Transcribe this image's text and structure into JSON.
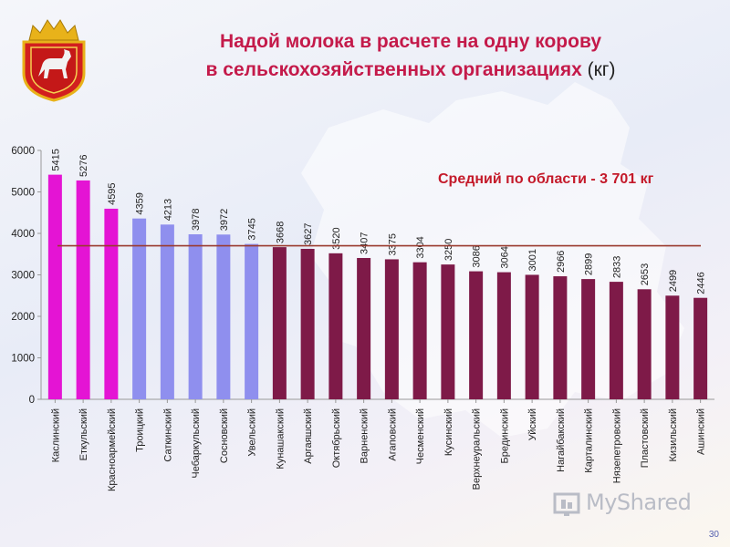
{
  "title": {
    "line1": "Надой молока в расчете на одну корову",
    "line2": "в сельскохозяйственных организациях",
    "unit": "(кг)"
  },
  "average_label": "Средний по области - 3 701 кг",
  "page_number": "30",
  "watermark": "MyShared",
  "emblem": {
    "icon": "chelyabinsk-coat-of-arms-icon"
  },
  "colors": {
    "magenta": "#e414d4",
    "lavender": "#8f8fee",
    "maroon": "#7e1a48",
    "average_line": "#9a3a2e",
    "title": "#c41a4a"
  },
  "chart_data": {
    "type": "bar",
    "categories": [
      "Каслинский",
      "Еткульский",
      "Красноармейский",
      "Троицкий",
      "Саткинский",
      "Чебаркульский",
      "Сосновский",
      "Увельский",
      "Кунашакский",
      "Аргаяшский",
      "Октябрьский",
      "Варненский",
      "Агаповский",
      "Чесменский",
      "Кусинский",
      "Верхнеуральский",
      "Брединский",
      "Уйский",
      "Нагайбакский",
      "Карталинский",
      "Нязепетровский",
      "Пластовский",
      "Кизильский",
      "Ашинский"
    ],
    "values": [
      5415,
      5276,
      4595,
      4359,
      4213,
      3978,
      3972,
      3745,
      3668,
      3627,
      3520,
      3407,
      3375,
      3304,
      3250,
      3086,
      3064,
      3001,
      2966,
      2899,
      2833,
      2653,
      2499,
      2446
    ],
    "bar_colors": [
      "magenta",
      "magenta",
      "magenta",
      "lavender",
      "lavender",
      "lavender",
      "lavender",
      "lavender",
      "maroon",
      "maroon",
      "maroon",
      "maroon",
      "maroon",
      "maroon",
      "maroon",
      "maroon",
      "maroon",
      "maroon",
      "maroon",
      "maroon",
      "maroon",
      "maroon",
      "maroon",
      "maroon"
    ],
    "average": 3701,
    "ylim": [
      0,
      6000
    ],
    "yticks": [
      0,
      1000,
      2000,
      3000,
      4000,
      5000,
      6000
    ],
    "grid": false,
    "legend": "none"
  }
}
